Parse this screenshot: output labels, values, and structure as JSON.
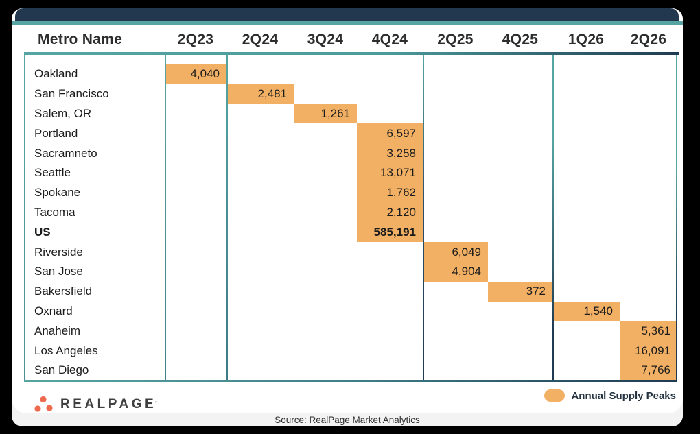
{
  "header": {
    "metro_label": "Metro Name",
    "quarters": [
      "2Q23",
      "2Q24",
      "3Q24",
      "4Q24",
      "2Q25",
      "4Q25",
      "1Q26",
      "2Q26"
    ]
  },
  "chart_data": {
    "type": "table",
    "columns": [
      "Metro Name",
      "2Q23",
      "2Q24",
      "3Q24",
      "4Q24",
      "2Q25",
      "4Q25",
      "1Q26",
      "2Q26"
    ],
    "rows": [
      {
        "metro": "Oakland",
        "quarter": "2Q23",
        "value": 4040,
        "display": "4,040",
        "bold": false
      },
      {
        "metro": "San Francisco",
        "quarter": "2Q24",
        "value": 2481,
        "display": "2,481",
        "bold": false
      },
      {
        "metro": "Salem, OR",
        "quarter": "3Q24",
        "value": 1261,
        "display": "1,261",
        "bold": false
      },
      {
        "metro": "Portland",
        "quarter": "4Q24",
        "value": 6597,
        "display": "6,597",
        "bold": false
      },
      {
        "metro": "Sacramneto",
        "quarter": "4Q24",
        "value": 3258,
        "display": "3,258",
        "bold": false
      },
      {
        "metro": "Seattle",
        "quarter": "4Q24",
        "value": 13071,
        "display": "13,071",
        "bold": false
      },
      {
        "metro": "Spokane",
        "quarter": "4Q24",
        "value": 1762,
        "display": "1,762",
        "bold": false
      },
      {
        "metro": "Tacoma",
        "quarter": "4Q24",
        "value": 2120,
        "display": "2,120",
        "bold": false
      },
      {
        "metro": "US",
        "quarter": "4Q24",
        "value": 585191,
        "display": "585,191",
        "bold": true
      },
      {
        "metro": "Riverside",
        "quarter": "2Q25",
        "value": 6049,
        "display": "6,049",
        "bold": false
      },
      {
        "metro": "San Jose",
        "quarter": "2Q25",
        "value": 4904,
        "display": "4,904",
        "bold": false
      },
      {
        "metro": "Bakersfield",
        "quarter": "4Q25",
        "value": 372,
        "display": "372",
        "bold": false
      },
      {
        "metro": "Oxnard",
        "quarter": "1Q26",
        "value": 1540,
        "display": "1,540",
        "bold": false
      },
      {
        "metro": "Anaheim",
        "quarter": "2Q26",
        "value": 5361,
        "display": "5,361",
        "bold": false
      },
      {
        "metro": "Los Angeles",
        "quarter": "2Q26",
        "value": 16091,
        "display": "16,091",
        "bold": false
      },
      {
        "metro": "San Diego",
        "quarter": "2Q26",
        "value": 7766,
        "display": "7,766",
        "bold": false
      }
    ],
    "legend": [
      "Annual Supply Peaks"
    ],
    "legend_position": "bottom-right",
    "grid": false
  },
  "footer": {
    "brand": "REALPAGE",
    "brand_tick": "ʹ",
    "legend_label": "Annual Supply Peaks",
    "source": "Source: RealPage Market Analytics"
  },
  "colors": {
    "frame": "#000000",
    "navy": "#21384f",
    "teal": "#57a5a2",
    "highlight_orange": "#f2b065",
    "footer_strip": "#f3f3f3",
    "logo_dot": "#ed6a4f",
    "text_dark": "#1b1b1b"
  }
}
